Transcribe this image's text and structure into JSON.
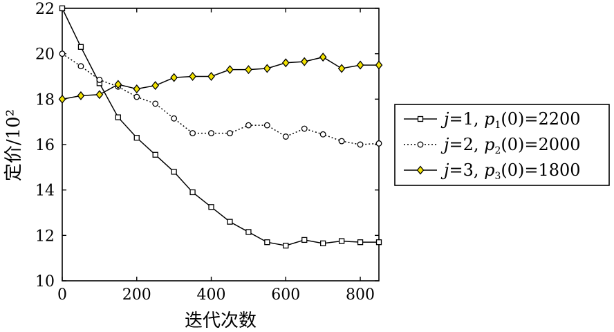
{
  "chart_data": {
    "type": "line",
    "xlabel": "迭代次数",
    "ylabel": "定价/10²",
    "xlim": [
      0,
      850
    ],
    "ylim": [
      10,
      22
    ],
    "xticks": [
      0,
      200,
      400,
      600,
      800
    ],
    "yticks": [
      10,
      12,
      14,
      16,
      18,
      20,
      22
    ],
    "grid": false,
    "legend_position": "outside-right",
    "x": [
      0,
      50,
      100,
      150,
      200,
      250,
      300,
      350,
      400,
      450,
      500,
      550,
      600,
      650,
      700,
      750,
      800,
      850
    ],
    "series": [
      {
        "name": "j=1, p1(0)=2200",
        "legend": {
          "prefix": "j",
          "eq1": "=1, ",
          "p": "p",
          "sub": "1",
          "rest": "(0)=2200"
        },
        "line": "solid",
        "marker": "square",
        "marker_fill": "#ffffff",
        "values": [
          22.0,
          20.3,
          18.7,
          17.2,
          16.3,
          15.55,
          14.8,
          13.9,
          13.25,
          12.6,
          12.15,
          11.7,
          11.55,
          11.8,
          11.65,
          11.75,
          11.7,
          11.7
        ]
      },
      {
        "name": "j=2, p2(0)=2000",
        "legend": {
          "prefix": "j",
          "eq1": "=2, ",
          "p": "p",
          "sub": "2",
          "rest": "(0)=2000"
        },
        "line": "dotted",
        "marker": "circle",
        "marker_fill": "#ffffff",
        "values": [
          20.0,
          19.45,
          18.85,
          18.55,
          18.1,
          17.8,
          17.15,
          16.5,
          16.5,
          16.5,
          16.85,
          16.85,
          16.35,
          16.7,
          16.45,
          16.15,
          16.0,
          16.05
        ]
      },
      {
        "name": "j=3, p3(0)=1800",
        "legend": {
          "prefix": "j",
          "eq1": "=3, ",
          "p": "p",
          "sub": "3",
          "rest": "(0)=1800"
        },
        "line": "solid",
        "marker": "diamond",
        "marker_fill": "#f2e200",
        "values": [
          18.0,
          18.15,
          18.2,
          18.65,
          18.45,
          18.6,
          18.95,
          19.0,
          19.0,
          19.3,
          19.3,
          19.35,
          19.6,
          19.65,
          19.85,
          19.35,
          19.5,
          19.5
        ]
      }
    ]
  }
}
